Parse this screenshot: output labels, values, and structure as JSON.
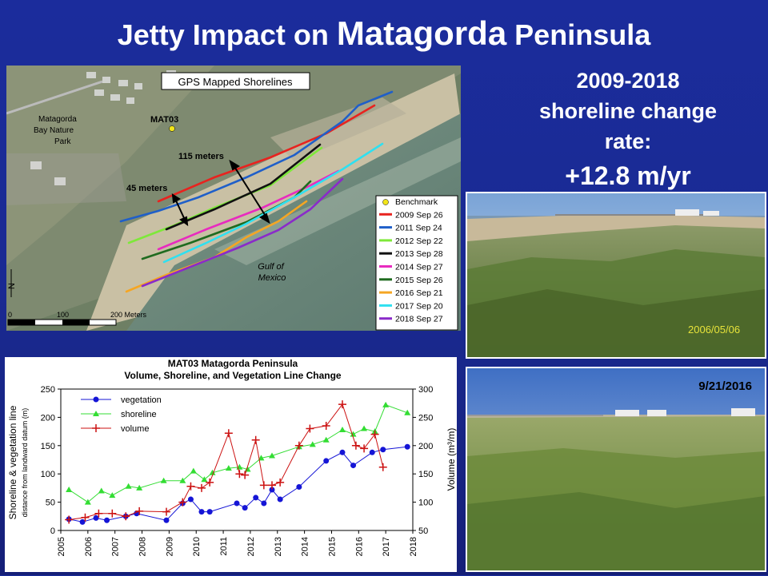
{
  "title": {
    "part1": "Jetty Impact on ",
    "part2": "Matagorda",
    "part3": " Peninsula"
  },
  "rate": {
    "line1": "2009-2018",
    "line2": "shoreline change",
    "line3": "rate:",
    "value": "+12.8 m/yr"
  },
  "map": {
    "title": "GPS Mapped Shorelines",
    "park_label_lines": [
      "Matagorda",
      "Bay Nature",
      "Park"
    ],
    "benchmark_label": "MAT03",
    "dist1": "115 meters",
    "dist2": "45 meters",
    "gulf_lines": [
      "Gulf of",
      "Mexico"
    ],
    "north": "N",
    "scale_labels": [
      "0",
      "100",
      "200 Meters"
    ],
    "legend": [
      {
        "label": "Benchmark",
        "color": "#f2e51a",
        "marker": true
      },
      {
        "label": "2009 Sep 26",
        "color": "#e8231f"
      },
      {
        "label": "2011 Sep 24",
        "color": "#1f5fc9"
      },
      {
        "label": "2012 Sep 22",
        "color": "#7ee83a"
      },
      {
        "label": "2013 Sep 28",
        "color": "#111111"
      },
      {
        "label": "2014 Sep 27",
        "color": "#e82bbf"
      },
      {
        "label": "2015 Sep 26",
        "color": "#1f6b1f"
      },
      {
        "label": "2016 Sep 21",
        "color": "#f5a623"
      },
      {
        "label": "2017 Sep 20",
        "color": "#2fe0f0"
      },
      {
        "label": "2018 Sep 27",
        "color": "#8a2bc9"
      }
    ]
  },
  "photos": {
    "photo1_stamp": "2006/05/06",
    "photo2_date": "9/21/2016"
  },
  "chart_data": {
    "type": "line",
    "title": "MAT03 Matagorda Peninsula",
    "subtitle": "Volume, Shoreline, and Vegetation Line Change",
    "ylabel": "Shoreline & vegetation line",
    "ylabel2": "distance from landward datum (m)",
    "y2label": "Volume (m³/m)",
    "xlim": [
      2005,
      2018
    ],
    "ylim": [
      0,
      250
    ],
    "y2lim": [
      50,
      300
    ],
    "xticks": [
      "2005",
      "2006",
      "2007",
      "2008",
      "2009",
      "2010",
      "2011",
      "2012",
      "2013",
      "2014",
      "2015",
      "2016",
      "2017",
      "2018"
    ],
    "yticks": [
      "0",
      "50",
      "100",
      "150",
      "200",
      "250"
    ],
    "y2ticks": [
      "50",
      "100",
      "150",
      "200",
      "250",
      "300"
    ],
    "series": [
      {
        "name": "vegetation",
        "color": "#1515d6",
        "marker": "circle",
        "axis": "left",
        "x": [
          2005.3,
          2005.8,
          2006.3,
          2006.7,
          2007.4,
          2007.8,
          2008.9,
          2009.5,
          2009.8,
          2010.2,
          2010.5,
          2011.5,
          2011.8,
          2012.2,
          2012.5,
          2012.8,
          2013.1,
          2013.8,
          2014.8,
          2015.4,
          2015.8,
          2016.5,
          2016.9,
          2017.8
        ],
        "y": [
          20,
          15,
          22,
          18,
          25,
          30,
          18,
          48,
          55,
          33,
          33,
          48,
          40,
          58,
          48,
          72,
          55,
          77,
          123,
          138,
          115,
          138,
          143,
          148
        ]
      },
      {
        "name": "shoreline",
        "color": "#33dd33",
        "marker": "triangle",
        "axis": "left",
        "x": [
          2005.3,
          2006.0,
          2006.5,
          2006.9,
          2007.5,
          2007.9,
          2008.8,
          2009.5,
          2009.9,
          2010.3,
          2010.6,
          2011.2,
          2011.6,
          2011.9,
          2012.4,
          2012.8,
          2013.8,
          2014.3,
          2014.8,
          2015.4,
          2015.8,
          2016.2,
          2016.6,
          2017.0,
          2017.8
        ],
        "y": [
          72,
          50,
          70,
          62,
          78,
          75,
          88,
          88,
          105,
          90,
          102,
          110,
          112,
          108,
          128,
          132,
          148,
          152,
          160,
          178,
          170,
          180,
          175,
          222,
          208
        ]
      },
      {
        "name": "volume",
        "color": "#cc1111",
        "marker": "plus",
        "axis": "right",
        "x": [
          2005.3,
          2005.9,
          2006.4,
          2006.9,
          2007.4,
          2007.9,
          2008.9,
          2009.5,
          2009.8,
          2010.2,
          2010.5,
          2011.2,
          2011.6,
          2011.8,
          2012.2,
          2012.5,
          2012.8,
          2013.1,
          2013.8,
          2014.2,
          2014.8,
          2015.4,
          2015.9,
          2016.2,
          2016.6,
          2016.9
        ],
        "y": [
          69,
          73,
          80,
          80,
          75,
          84,
          83,
          100,
          128,
          125,
          135,
          222,
          150,
          148,
          210,
          130,
          130,
          135,
          200,
          230,
          235,
          273,
          200,
          195,
          220,
          162
        ]
      }
    ]
  }
}
